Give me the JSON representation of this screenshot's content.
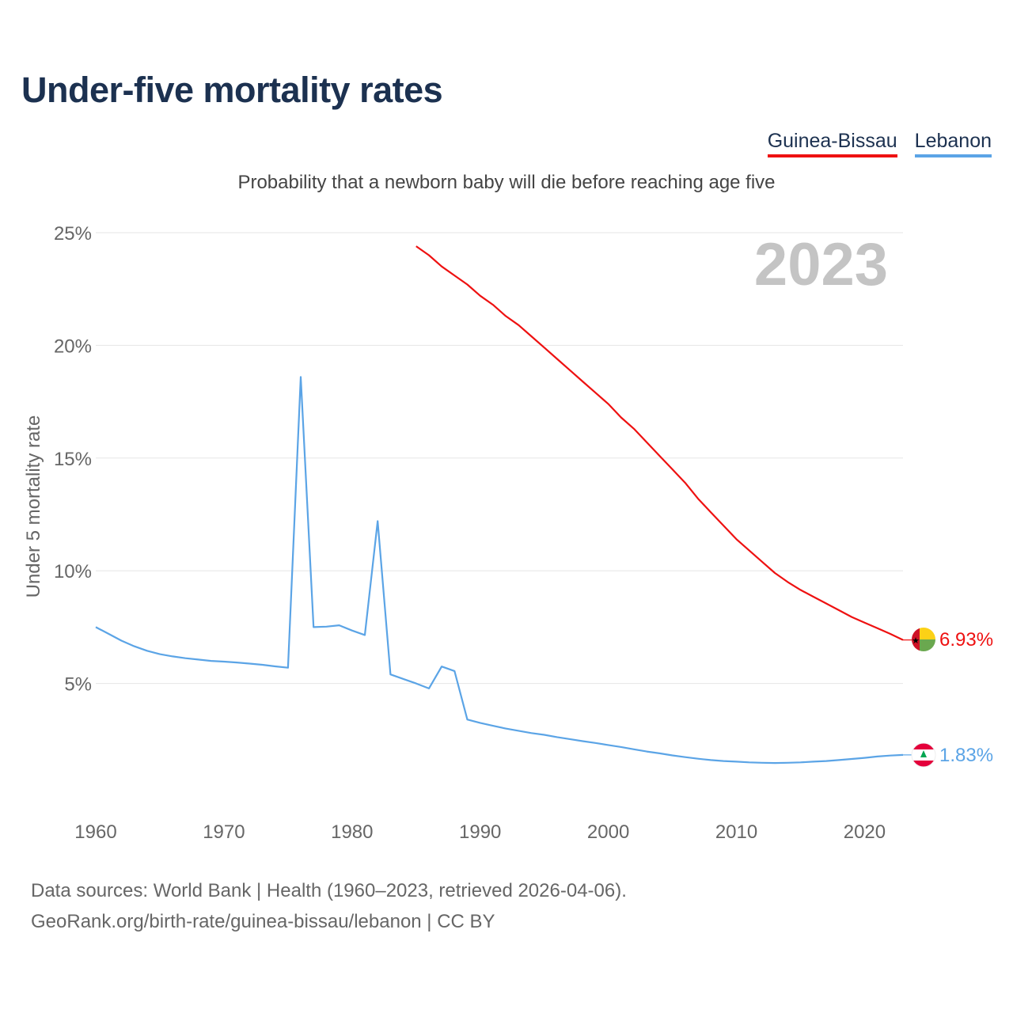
{
  "page": {
    "title": "Under-five mortality rates",
    "subtitle": "Probability that a newborn baby will die before reaching age five",
    "sources_line1": "Data sources: World Bank | Health (1960–2023, retrieved 2026-04-06).",
    "sources_line2": "GeoRank.org/birth-rate/guinea-bissau/lebanon | CC BY"
  },
  "legend": [
    {
      "label": "Guinea-Bissau",
      "color": "#ee1111"
    },
    {
      "label": "Lebanon",
      "color": "#5ba4e6"
    }
  ],
  "chart_data": {
    "type": "line",
    "title": "Under-five mortality rates",
    "subtitle": "Probability that a newborn baby will die before reaching age five",
    "ylabel": "Under 5 mortality rate",
    "xlabel": "",
    "year_label": "2023",
    "xlim": [
      1960,
      2023
    ],
    "ylim": [
      0,
      25
    ],
    "x_ticks": [
      1960,
      1970,
      1980,
      1990,
      2000,
      2010,
      2020
    ],
    "y_ticks": [
      5,
      10,
      15,
      20,
      25
    ],
    "y_tick_labels": [
      "5%",
      "10%",
      "15%",
      "20%",
      "25%"
    ],
    "grid": true,
    "series": [
      {
        "name": "Guinea-Bissau",
        "color": "#ee1111",
        "end_label": "6.93%",
        "flag": "guinea-bissau-flag",
        "x": [
          1985,
          1986,
          1987,
          1988,
          1989,
          1990,
          1991,
          1992,
          1993,
          1994,
          1995,
          1996,
          1997,
          1998,
          1999,
          2000,
          2001,
          2002,
          2003,
          2004,
          2005,
          2006,
          2007,
          2008,
          2009,
          2010,
          2011,
          2012,
          2013,
          2014,
          2015,
          2016,
          2017,
          2018,
          2019,
          2020,
          2021,
          2022,
          2023
        ],
        "y": [
          24.4,
          24.0,
          23.5,
          23.1,
          22.7,
          22.2,
          21.8,
          21.3,
          20.9,
          20.4,
          19.9,
          19.4,
          18.9,
          18.4,
          17.9,
          17.4,
          16.8,
          16.3,
          15.7,
          15.1,
          14.5,
          13.9,
          13.2,
          12.6,
          12.0,
          11.4,
          10.9,
          10.4,
          9.9,
          9.5,
          9.15,
          8.85,
          8.55,
          8.25,
          7.95,
          7.7,
          7.45,
          7.2,
          6.93
        ]
      },
      {
        "name": "Lebanon",
        "color": "#5ba4e6",
        "end_label": "1.83%",
        "flag": "lebanon-flag",
        "x": [
          1960,
          1961,
          1962,
          1963,
          1964,
          1965,
          1966,
          1967,
          1968,
          1969,
          1970,
          1971,
          1972,
          1973,
          1974,
          1975,
          1976,
          1977,
          1978,
          1979,
          1980,
          1981,
          1982,
          1983,
          1984,
          1985,
          1986,
          1987,
          1988,
          1989,
          1990,
          1991,
          1992,
          1993,
          1994,
          1995,
          1996,
          1997,
          1998,
          1999,
          2000,
          2001,
          2002,
          2003,
          2004,
          2005,
          2006,
          2007,
          2008,
          2009,
          2010,
          2011,
          2012,
          2013,
          2014,
          2015,
          2016,
          2017,
          2018,
          2019,
          2020,
          2021,
          2022,
          2023
        ],
        "y": [
          7.5,
          7.2,
          6.9,
          6.65,
          6.45,
          6.3,
          6.2,
          6.12,
          6.06,
          6.0,
          5.97,
          5.93,
          5.88,
          5.83,
          5.76,
          5.7,
          18.6,
          7.5,
          7.52,
          7.58,
          7.35,
          7.15,
          12.2,
          5.4,
          5.2,
          5.0,
          4.78,
          5.75,
          5.55,
          3.4,
          3.25,
          3.12,
          3.0,
          2.9,
          2.8,
          2.72,
          2.62,
          2.53,
          2.44,
          2.36,
          2.27,
          2.18,
          2.08,
          1.98,
          1.9,
          1.81,
          1.73,
          1.66,
          1.6,
          1.56,
          1.53,
          1.5,
          1.48,
          1.47,
          1.48,
          1.5,
          1.53,
          1.56,
          1.6,
          1.65,
          1.7,
          1.76,
          1.8,
          1.83
        ]
      }
    ]
  }
}
